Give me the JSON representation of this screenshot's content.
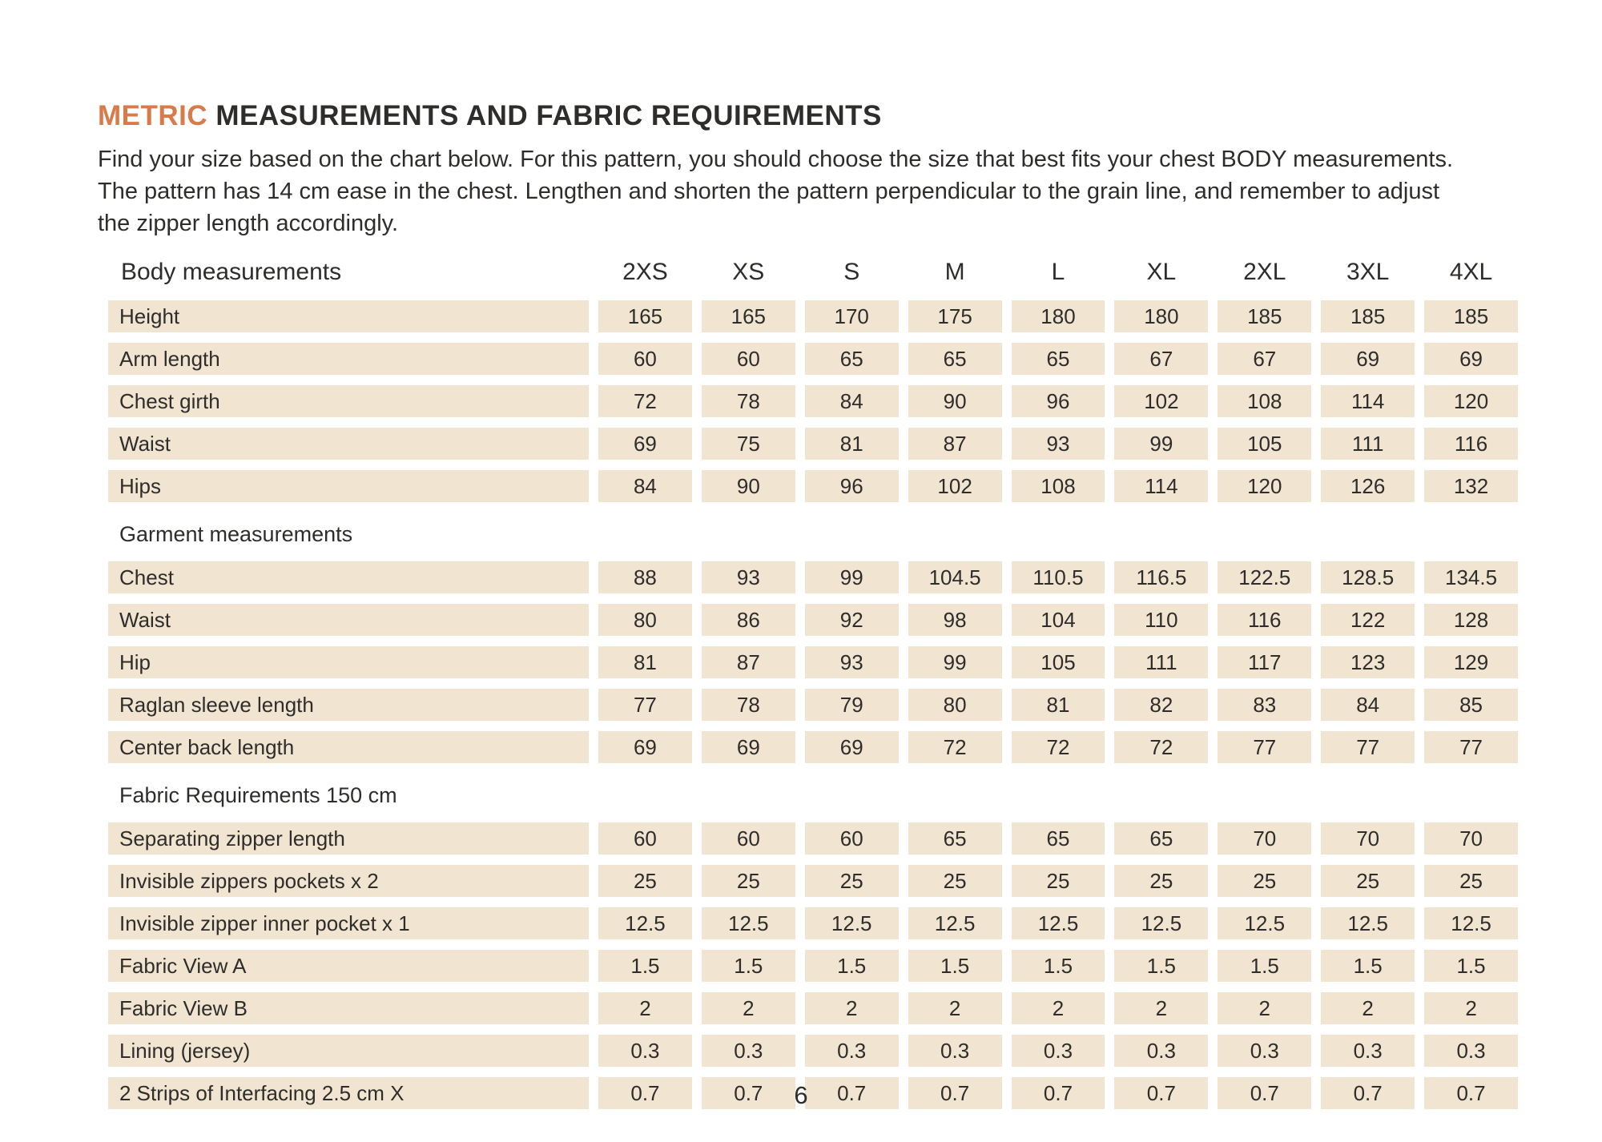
{
  "page": {
    "title_accent": "METRIC",
    "title_rest": " MEASUREMENTS AND FABRIC REQUIREMENTS",
    "intro": "Find your size based on the chart below. For this pattern, you should choose the size that best fits your chest BODY measurements. The pattern has 14 cm ease in the chest. Lengthen and shorten the pattern perpendicular to the grain line, and remember to adjust the zipper length accordingly.",
    "page_number": "6"
  },
  "colors": {
    "accent": "#d87a4a",
    "text": "#2e2d2b",
    "cell_background": "#f1e5d2"
  },
  "table": {
    "header_label": "Body measurements",
    "sizes": [
      "2XS",
      "XS",
      "S",
      "M",
      "L",
      "XL",
      "2XL",
      "3XL",
      "4XL"
    ],
    "sections": [
      {
        "heading": "",
        "rows": [
          {
            "label": "Height",
            "values": [
              "165",
              "165",
              "170",
              "175",
              "180",
              "180",
              "185",
              "185",
              "185"
            ]
          },
          {
            "label": "Arm length",
            "values": [
              "60",
              "60",
              "65",
              "65",
              "65",
              "67",
              "67",
              "69",
              "69"
            ]
          },
          {
            "label": "Chest girth",
            "values": [
              "72",
              "78",
              "84",
              "90",
              "96",
              "102",
              "108",
              "114",
              "120"
            ]
          },
          {
            "label": "Waist",
            "values": [
              "69",
              "75",
              "81",
              "87",
              "93",
              "99",
              "105",
              "111",
              "116"
            ]
          },
          {
            "label": "Hips",
            "values": [
              "84",
              "90",
              "96",
              "102",
              "108",
              "114",
              "120",
              "126",
              "132"
            ]
          }
        ]
      },
      {
        "heading": "Garment measurements",
        "rows": [
          {
            "label": "Chest",
            "values": [
              "88",
              "93",
              "99",
              "104.5",
              "110.5",
              "116.5",
              "122.5",
              "128.5",
              "134.5"
            ]
          },
          {
            "label": "Waist",
            "values": [
              "80",
              "86",
              "92",
              "98",
              "104",
              "110",
              "116",
              "122",
              "128"
            ]
          },
          {
            "label": "Hip",
            "values": [
              "81",
              "87",
              "93",
              "99",
              "105",
              "111",
              "117",
              "123",
              "129"
            ]
          },
          {
            "label": "Raglan sleeve length",
            "values": [
              "77",
              "78",
              "79",
              "80",
              "81",
              "82",
              "83",
              "84",
              "85"
            ]
          },
          {
            "label": "Center back length",
            "values": [
              "69",
              "69",
              "69",
              "72",
              "72",
              "72",
              "77",
              "77",
              "77"
            ]
          }
        ]
      },
      {
        "heading": "Fabric Requirements 150 cm",
        "rows": [
          {
            "label": "Separating zipper length",
            "values": [
              "60",
              "60",
              "60",
              "65",
              "65",
              "65",
              "70",
              "70",
              "70"
            ]
          },
          {
            "label": "Invisible zippers pockets x 2",
            "values": [
              "25",
              "25",
              "25",
              "25",
              "25",
              "25",
              "25",
              "25",
              "25"
            ]
          },
          {
            "label": "Invisible zipper inner pocket x 1",
            "values": [
              "12.5",
              "12.5",
              "12.5",
              "12.5",
              "12.5",
              "12.5",
              "12.5",
              "12.5",
              "12.5"
            ]
          },
          {
            "label": "Fabric View A",
            "values": [
              "1.5",
              "1.5",
              "1.5",
              "1.5",
              "1.5",
              "1.5",
              "1.5",
              "1.5",
              "1.5"
            ]
          },
          {
            "label": "Fabric View B",
            "values": [
              "2",
              "2",
              "2",
              "2",
              "2",
              "2",
              "2",
              "2",
              "2"
            ]
          },
          {
            "label": "Lining (jersey)",
            "values": [
              "0.3",
              "0.3",
              "0.3",
              "0.3",
              "0.3",
              "0.3",
              "0.3",
              "0.3",
              "0.3"
            ]
          },
          {
            "label": "2 Strips of Interfacing  2.5 cm X",
            "values": [
              "0.7",
              "0.7",
              "0.7",
              "0.7",
              "0.7",
              "0.7",
              "0.7",
              "0.7",
              "0.7"
            ]
          }
        ]
      }
    ]
  }
}
